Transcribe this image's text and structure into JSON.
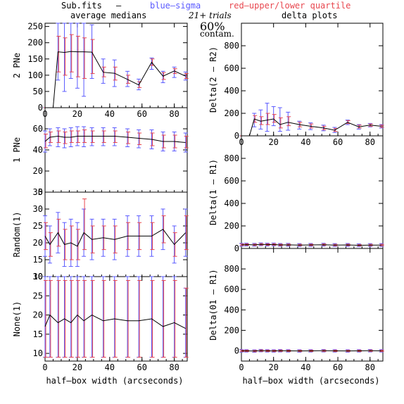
{
  "header": {
    "file": "Sub.fits",
    "dash": "–",
    "blue_label": "blue–sigma",
    "red_label": "red–upper/lower quartile",
    "left_title": "average medians",
    "right_title": "delta plots",
    "trials": "21+ trials",
    "contam_pct": "60%",
    "contam_word": "contam."
  },
  "colors": {
    "sigma": "#5a5aff",
    "quartile": "#e8474f",
    "median": "#000000"
  },
  "chart_data": [
    {
      "type": "line",
      "panel": "2 PNe",
      "ylabel": "2 PNe",
      "xlim": [
        0,
        88
      ],
      "ylim": [
        0,
        260
      ],
      "xticks": [
        "0",
        "20",
        "40",
        "60",
        "80"
      ],
      "yticks": [
        "0",
        "50",
        "100",
        "150",
        "200",
        "250"
      ],
      "x": [
        0,
        5,
        8,
        12,
        16,
        20,
        24,
        29,
        36,
        43,
        51,
        58,
        66,
        73,
        80,
        87
      ],
      "median": [
        0,
        0,
        172,
        170,
        173,
        172,
        172,
        171,
        109,
        106,
        87,
        70,
        140,
        97,
        113,
        97
      ],
      "sigma_low": [
        0,
        0,
        85,
        50,
        90,
        60,
        35,
        90,
        75,
        65,
        65,
        55,
        118,
        77,
        93,
        85
      ],
      "sigma_high": [
        0,
        0,
        260,
        260,
        260,
        260,
        260,
        255,
        150,
        147,
        112,
        88,
        153,
        112,
        125,
        110
      ],
      "quart_low": [
        0,
        0,
        110,
        100,
        110,
        95,
        90,
        105,
        95,
        85,
        75,
        62,
        130,
        87,
        105,
        90
      ],
      "quart_high": [
        0,
        0,
        220,
        215,
        225,
        220,
        215,
        210,
        125,
        125,
        100,
        80,
        150,
        108,
        120,
        105
      ]
    },
    {
      "type": "line",
      "panel": "1 PNe",
      "ylabel": "1 PNe",
      "xlim": [
        0,
        88
      ],
      "ylim": [
        0,
        80
      ],
      "xticks": [],
      "yticks": [
        "0",
        "20",
        "40",
        "60"
      ],
      "x": [
        0,
        3,
        8,
        12,
        16,
        20,
        24,
        29,
        36,
        43,
        51,
        58,
        66,
        73,
        80,
        87
      ],
      "median": [
        48,
        52,
        53,
        52,
        52,
        53,
        53,
        53,
        53,
        53,
        52,
        51,
        50,
        48,
        48,
        47
      ],
      "sigma_low": [
        38,
        44,
        43,
        42,
        43,
        44,
        43,
        44,
        44,
        44,
        43,
        42,
        41,
        39,
        39,
        38
      ],
      "sigma_high": [
        58,
        60,
        61,
        60,
        61,
        62,
        62,
        61,
        61,
        61,
        60,
        59,
        59,
        57,
        57,
        56
      ],
      "quart_low": [
        42,
        47,
        47,
        46,
        47,
        47,
        47,
        47,
        47,
        47,
        46,
        45,
        44,
        42,
        42,
        42
      ],
      "quart_high": [
        55,
        57,
        58,
        57,
        58,
        58,
        59,
        58,
        58,
        58,
        57,
        56,
        56,
        54,
        54,
        53
      ]
    },
    {
      "type": "line",
      "panel": "Random(1)",
      "ylabel": "Random(1)",
      "xlim": [
        0,
        88
      ],
      "ylim": [
        10,
        35
      ],
      "xticks": [],
      "yticks": [
        "10",
        "15",
        "20",
        "25",
        "30",
        "35"
      ],
      "x": [
        0,
        3,
        8,
        12,
        16,
        20,
        24,
        29,
        36,
        43,
        51,
        58,
        66,
        73,
        80,
        87
      ],
      "median": [
        22,
        19.5,
        23,
        19.5,
        20,
        19,
        23,
        21,
        21.5,
        21,
        22,
        22,
        22,
        24,
        19.5,
        23
      ],
      "sigma_low": [
        16,
        14,
        17,
        13,
        13,
        13,
        16,
        15,
        16,
        15,
        16,
        16,
        16,
        18,
        14,
        16
      ],
      "sigma_high": [
        28,
        25,
        29,
        26,
        27,
        26,
        30,
        27,
        27,
        27,
        28,
        28,
        28,
        30,
        25,
        30
      ],
      "quart_low": [
        18,
        16,
        19,
        15,
        15,
        15,
        18,
        17,
        18,
        17,
        18,
        18,
        18,
        20,
        16,
        18
      ],
      "quart_high": [
        26,
        23,
        27,
        24,
        25,
        24,
        33,
        25,
        25,
        25,
        26,
        26,
        26,
        28,
        23,
        28
      ]
    },
    {
      "type": "line",
      "panel": "None(1)",
      "ylabel": "None(1)",
      "xlim": [
        0,
        88
      ],
      "ylim": [
        8,
        30
      ],
      "xticks": [
        "0",
        "20",
        "40",
        "60",
        "80"
      ],
      "yticks": [
        "10",
        "15",
        "20",
        "25",
        "30"
      ],
      "x": [
        0,
        3,
        8,
        12,
        16,
        20,
        24,
        29,
        36,
        43,
        51,
        58,
        66,
        73,
        80,
        87
      ],
      "median": [
        17,
        20,
        18,
        19,
        18,
        20,
        18.5,
        20,
        18.5,
        19,
        18.5,
        18.5,
        19,
        17,
        18,
        16.5
      ],
      "sigma_low": [
        9,
        9,
        9,
        9,
        9,
        9,
        9,
        9,
        9,
        9,
        9,
        9,
        9,
        9,
        9,
        9
      ],
      "sigma_high": [
        30,
        30,
        30,
        30,
        30,
        30,
        30,
        30,
        30,
        30,
        30,
        30,
        30,
        30,
        30,
        27
      ],
      "quart_low": [
        9,
        9,
        9,
        9,
        9,
        9,
        9,
        9,
        9,
        9,
        9,
        9,
        9,
        9,
        9,
        9
      ],
      "quart_high": [
        29,
        29,
        29,
        29,
        29,
        29,
        29,
        29,
        29,
        29,
        29,
        29,
        29,
        29,
        29,
        27
      ]
    },
    {
      "type": "line",
      "panel": "Delta(2 – R2)",
      "ylabel": "Delta(2 – R2)",
      "xlim": [
        0,
        88
      ],
      "ylim": [
        0,
        1000
      ],
      "xticks": [
        "0",
        "20",
        "40",
        "60",
        "80"
      ],
      "yticks": [
        "0",
        "200",
        "400",
        "600",
        "800"
      ],
      "x": [
        0,
        5,
        8,
        12,
        16,
        20,
        24,
        29,
        36,
        43,
        51,
        58,
        66,
        73,
        80,
        87
      ],
      "median": [
        0,
        0,
        150,
        130,
        140,
        150,
        100,
        120,
        100,
        85,
        70,
        50,
        120,
        80,
        95,
        85
      ],
      "sigma_low": [
        0,
        0,
        80,
        60,
        40,
        90,
        40,
        50,
        60,
        55,
        45,
        30,
        100,
        60,
        80,
        70
      ],
      "sigma_high": [
        0,
        0,
        200,
        230,
        290,
        260,
        250,
        210,
        130,
        115,
        95,
        75,
        140,
        100,
        110,
        100
      ],
      "quart_low": [
        0,
        0,
        120,
        100,
        100,
        120,
        70,
        90,
        80,
        70,
        55,
        40,
        110,
        70,
        85,
        75
      ],
      "quart_high": [
        0,
        0,
        180,
        170,
        200,
        190,
        160,
        170,
        120,
        105,
        85,
        65,
        135,
        95,
        105,
        95
      ]
    },
    {
      "type": "line",
      "panel": "Delta(1 – R1)",
      "ylabel": "Delta(1 – R1)",
      "xlim": [
        0,
        88
      ],
      "ylim": [
        0,
        1000
      ],
      "xticks": [],
      "yticks": [
        "0",
        "200",
        "400",
        "600",
        "800"
      ],
      "x": [
        0,
        3,
        8,
        12,
        16,
        20,
        24,
        29,
        36,
        43,
        51,
        58,
        66,
        73,
        80,
        87
      ],
      "median": [
        32,
        34,
        32,
        36,
        34,
        35,
        31,
        32,
        30,
        31,
        33,
        30,
        31,
        28,
        30,
        30
      ],
      "sigma_low": [
        20,
        22,
        20,
        24,
        22,
        23,
        20,
        20,
        18,
        19,
        21,
        18,
        19,
        17,
        18,
        18
      ],
      "sigma_high": [
        45,
        47,
        45,
        49,
        47,
        48,
        44,
        45,
        43,
        44,
        46,
        43,
        44,
        41,
        43,
        43
      ],
      "quart_low": [
        26,
        28,
        26,
        30,
        28,
        29,
        25,
        26,
        24,
        25,
        27,
        24,
        25,
        23,
        24,
        24
      ],
      "quart_high": [
        39,
        41,
        39,
        43,
        41,
        42,
        38,
        39,
        37,
        38,
        40,
        37,
        38,
        35,
        37,
        37
      ]
    },
    {
      "type": "line",
      "panel": "Delta(01 – R1)",
      "ylabel": "Delta(01 – R1)",
      "xlim": [
        0,
        88
      ],
      "ylim": [
        -100,
        1000
      ],
      "xticks": [
        "0",
        "20",
        "40",
        "60",
        "80"
      ],
      "yticks": [
        "0",
        "200",
        "400",
        "600",
        "800"
      ],
      "x": [
        0,
        3,
        8,
        12,
        16,
        20,
        24,
        29,
        36,
        43,
        51,
        58,
        66,
        73,
        80,
        87
      ],
      "median": [
        0,
        0,
        -2,
        2,
        0,
        -1,
        1,
        0,
        -1,
        0,
        1,
        0,
        -1,
        0,
        1,
        0
      ],
      "sigma_low": [
        -12,
        -12,
        -14,
        -10,
        -12,
        -13,
        -11,
        -12,
        -13,
        -12,
        -11,
        -12,
        -13,
        -12,
        -11,
        -12
      ],
      "sigma_high": [
        12,
        12,
        10,
        14,
        12,
        11,
        13,
        12,
        11,
        12,
        13,
        12,
        11,
        12,
        13,
        12
      ],
      "quart_low": [
        -7,
        -7,
        -9,
        -5,
        -7,
        -8,
        -6,
        -7,
        -8,
        -7,
        -6,
        -7,
        -8,
        -7,
        -6,
        -7
      ],
      "quart_high": [
        7,
        7,
        5,
        9,
        7,
        6,
        8,
        7,
        6,
        7,
        8,
        7,
        6,
        7,
        8,
        7
      ]
    }
  ],
  "xlabel_left": "half–box width (arcseconds)",
  "xlabel_right": "half–box width (arcseconds)"
}
